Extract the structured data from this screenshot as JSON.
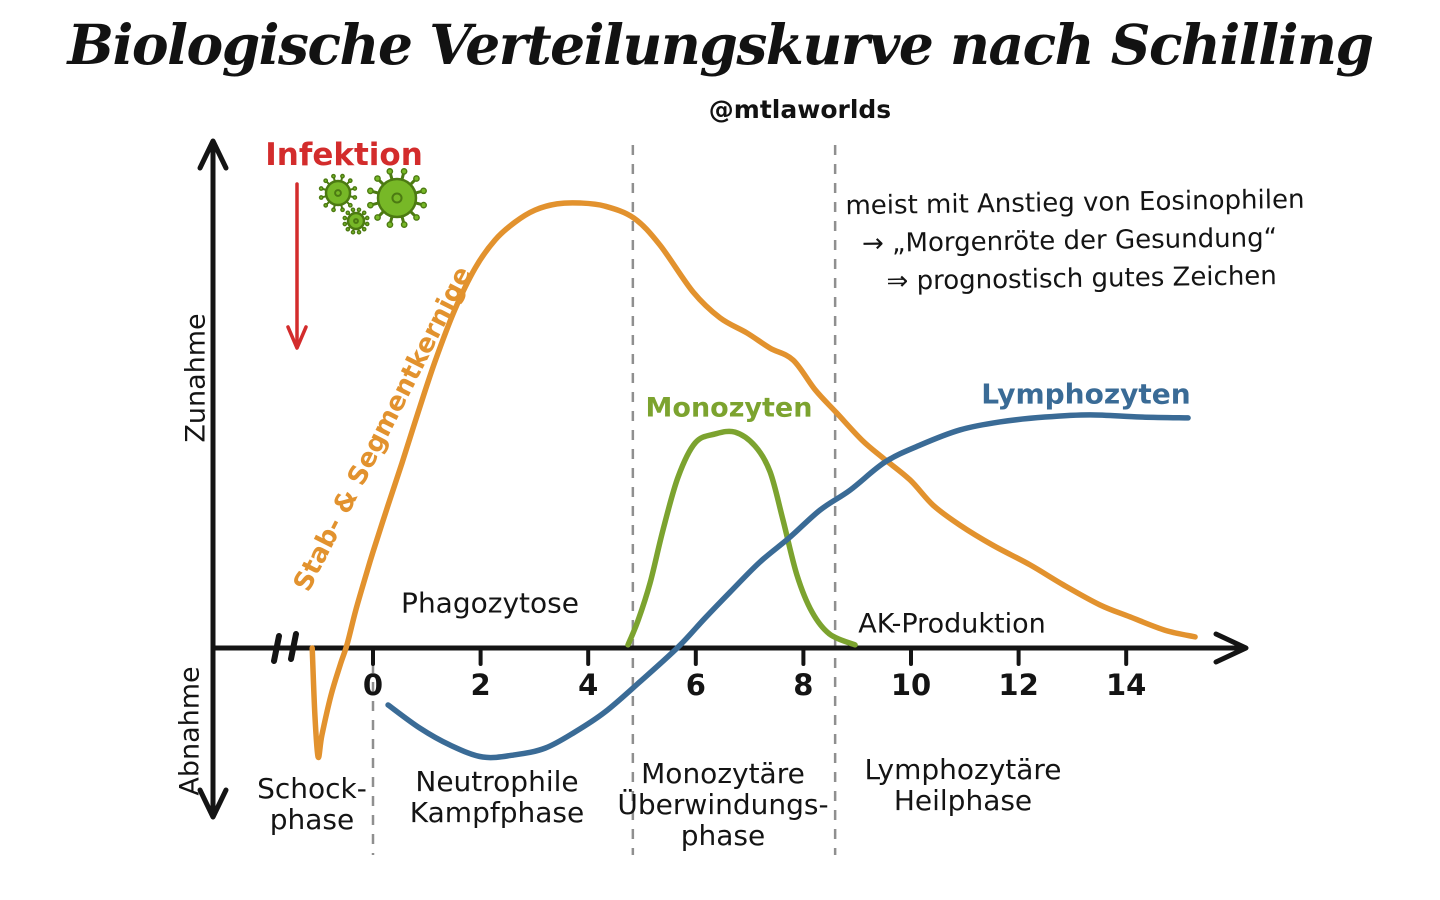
{
  "title": "Biologische Verteilungskurve nach Schilling",
  "handle": "@mtlaworlds",
  "infection": {
    "label": "Infektion"
  },
  "note": {
    "line1": "meist mit Anstieg von Eosinophilen",
    "line2": "→ „Morgenröte der Gesundung“",
    "line3": "⇒ prognostisch gutes Zeichen"
  },
  "phases": [
    {
      "label": "Schock-\nphase"
    },
    {
      "label": "Neutrophile\nKampfphase"
    },
    {
      "label": "Monozytäre\nÜberwindungs-\nphase"
    },
    {
      "label": "Lymphozytäre\nHeilphase"
    }
  ],
  "icons": {
    "viruses": "virus-icon",
    "infection_arrow": "arrow-down-icon",
    "x_axis_arrow": "arrow-right-icon",
    "y_axis_arrows": "arrow-up-down-icon",
    "axis_break": "axis-break-icon"
  },
  "colors": {
    "neutrophils_orange": "#E2922E",
    "monocytes_green": "#7CA32F",
    "lymphocytes_blue": "#3A6B96",
    "infection_red": "#D32C2C",
    "virus_green": "#77B827",
    "virus_outline": "#4C7A12",
    "axis_black": "#141414",
    "dashed_gray": "#8F8F8F",
    "text_black": "#141414"
  },
  "chart_data": {
    "type": "line",
    "title": "Biologische Verteilungskurve nach Schilling",
    "x_ticks": [
      0,
      2,
      4,
      6,
      8,
      10,
      12,
      14
    ],
    "x_range_shown": [
      -1.2,
      15.5
    ],
    "y_axis_labels": {
      "top": "Zunahme",
      "bottom": "Abnahme"
    },
    "y_meaning": "relative change vs baseline; 0 = x-axis, positive = Zunahme, negative = Abnahme",
    "grid": false,
    "legend_position": "labels on curves",
    "axis_break_before_zero": true,
    "region_labels": [
      {
        "text": "Phagozytose"
      },
      {
        "text": "AK-Produktion"
      }
    ],
    "phase_boundaries": [
      {
        "day": 0,
        "full_height": false
      },
      {
        "day": 4.83,
        "full_height": true
      },
      {
        "day": 8.59,
        "full_height": true
      }
    ],
    "series": [
      {
        "key": "stab-und-segmentkernige",
        "name": "Stab- & Segmentkernige",
        "color_ref": "neutrophils_orange",
        "points": [
          [
            -1.13,
            0
          ],
          [
            -1.08,
            -15.1
          ],
          [
            -1.02,
            -24.5
          ],
          [
            -0.95,
            -19.6
          ],
          [
            -0.78,
            -10.6
          ],
          [
            -0.61,
            -3.8
          ],
          [
            -0.48,
            0.9
          ],
          [
            -0.32,
            8.5
          ],
          [
            -0.13,
            16.4
          ],
          [
            0,
            21.6
          ],
          [
            0.28,
            32.1
          ],
          [
            0.54,
            41.6
          ],
          [
            0.84,
            53
          ],
          [
            1.15,
            64.3
          ],
          [
            1.52,
            76
          ],
          [
            1.9,
            85.4
          ],
          [
            2.27,
            91.7
          ],
          [
            2.64,
            95.7
          ],
          [
            3.01,
            98.4
          ],
          [
            3.42,
            99.8
          ],
          [
            3.85,
            100
          ],
          [
            4.31,
            99.3
          ],
          [
            4.85,
            96.6
          ],
          [
            5.33,
            90.6
          ],
          [
            5.95,
            80
          ],
          [
            6.45,
            74.2
          ],
          [
            6.95,
            70.8
          ],
          [
            7.38,
            67.4
          ],
          [
            7.81,
            64.7
          ],
          [
            8.22,
            58
          ],
          [
            8.62,
            52.8
          ],
          [
            9.09,
            46.7
          ],
          [
            9.48,
            42.7
          ],
          [
            9.98,
            37.8
          ],
          [
            10.41,
            32.1
          ],
          [
            10.91,
            27.6
          ],
          [
            11.52,
            23.1
          ],
          [
            12.21,
            18.7
          ],
          [
            12.83,
            14.2
          ],
          [
            13.51,
            9.7
          ],
          [
            14.07,
            7
          ],
          [
            14.72,
            4
          ],
          [
            15.28,
            2.5
          ]
        ]
      },
      {
        "key": "monozyten",
        "name": "Monozyten",
        "color_ref": "monocytes_green",
        "points": [
          [
            4.74,
            0.7
          ],
          [
            4.93,
            6.3
          ],
          [
            5.15,
            14.6
          ],
          [
            5.39,
            26.5
          ],
          [
            5.67,
            38.4
          ],
          [
            5.99,
            46.1
          ],
          [
            6.36,
            48.1
          ],
          [
            6.73,
            48.5
          ],
          [
            7.1,
            45.4
          ],
          [
            7.38,
            39.6
          ],
          [
            7.62,
            28.8
          ],
          [
            7.88,
            16.4
          ],
          [
            8.16,
            8.1
          ],
          [
            8.49,
            3.1
          ],
          [
            8.96,
            0.7
          ]
        ]
      },
      {
        "key": "lymphozyten",
        "name": "Lymphozyten",
        "color_ref": "lymphocytes_blue",
        "points": [
          [
            0.28,
            -12.8
          ],
          [
            0.87,
            -18
          ],
          [
            1.43,
            -21.8
          ],
          [
            2.04,
            -24.5
          ],
          [
            2.64,
            -24
          ],
          [
            3.2,
            -22.5
          ],
          [
            3.75,
            -18.9
          ],
          [
            4.31,
            -14.4
          ],
          [
            4.96,
            -7.6
          ],
          [
            5.67,
            0.2
          ],
          [
            6.17,
            6.7
          ],
          [
            6.64,
            12.6
          ],
          [
            7.19,
            19.3
          ],
          [
            7.75,
            24.9
          ],
          [
            8.31,
            31
          ],
          [
            8.87,
            35.5
          ],
          [
            9.52,
            41.8
          ],
          [
            10.17,
            45.6
          ],
          [
            10.91,
            49
          ],
          [
            11.65,
            50.8
          ],
          [
            12.49,
            51.9
          ],
          [
            13.33,
            52.4
          ],
          [
            14.26,
            51.9
          ],
          [
            15.15,
            51.7
          ]
        ]
      }
    ]
  }
}
